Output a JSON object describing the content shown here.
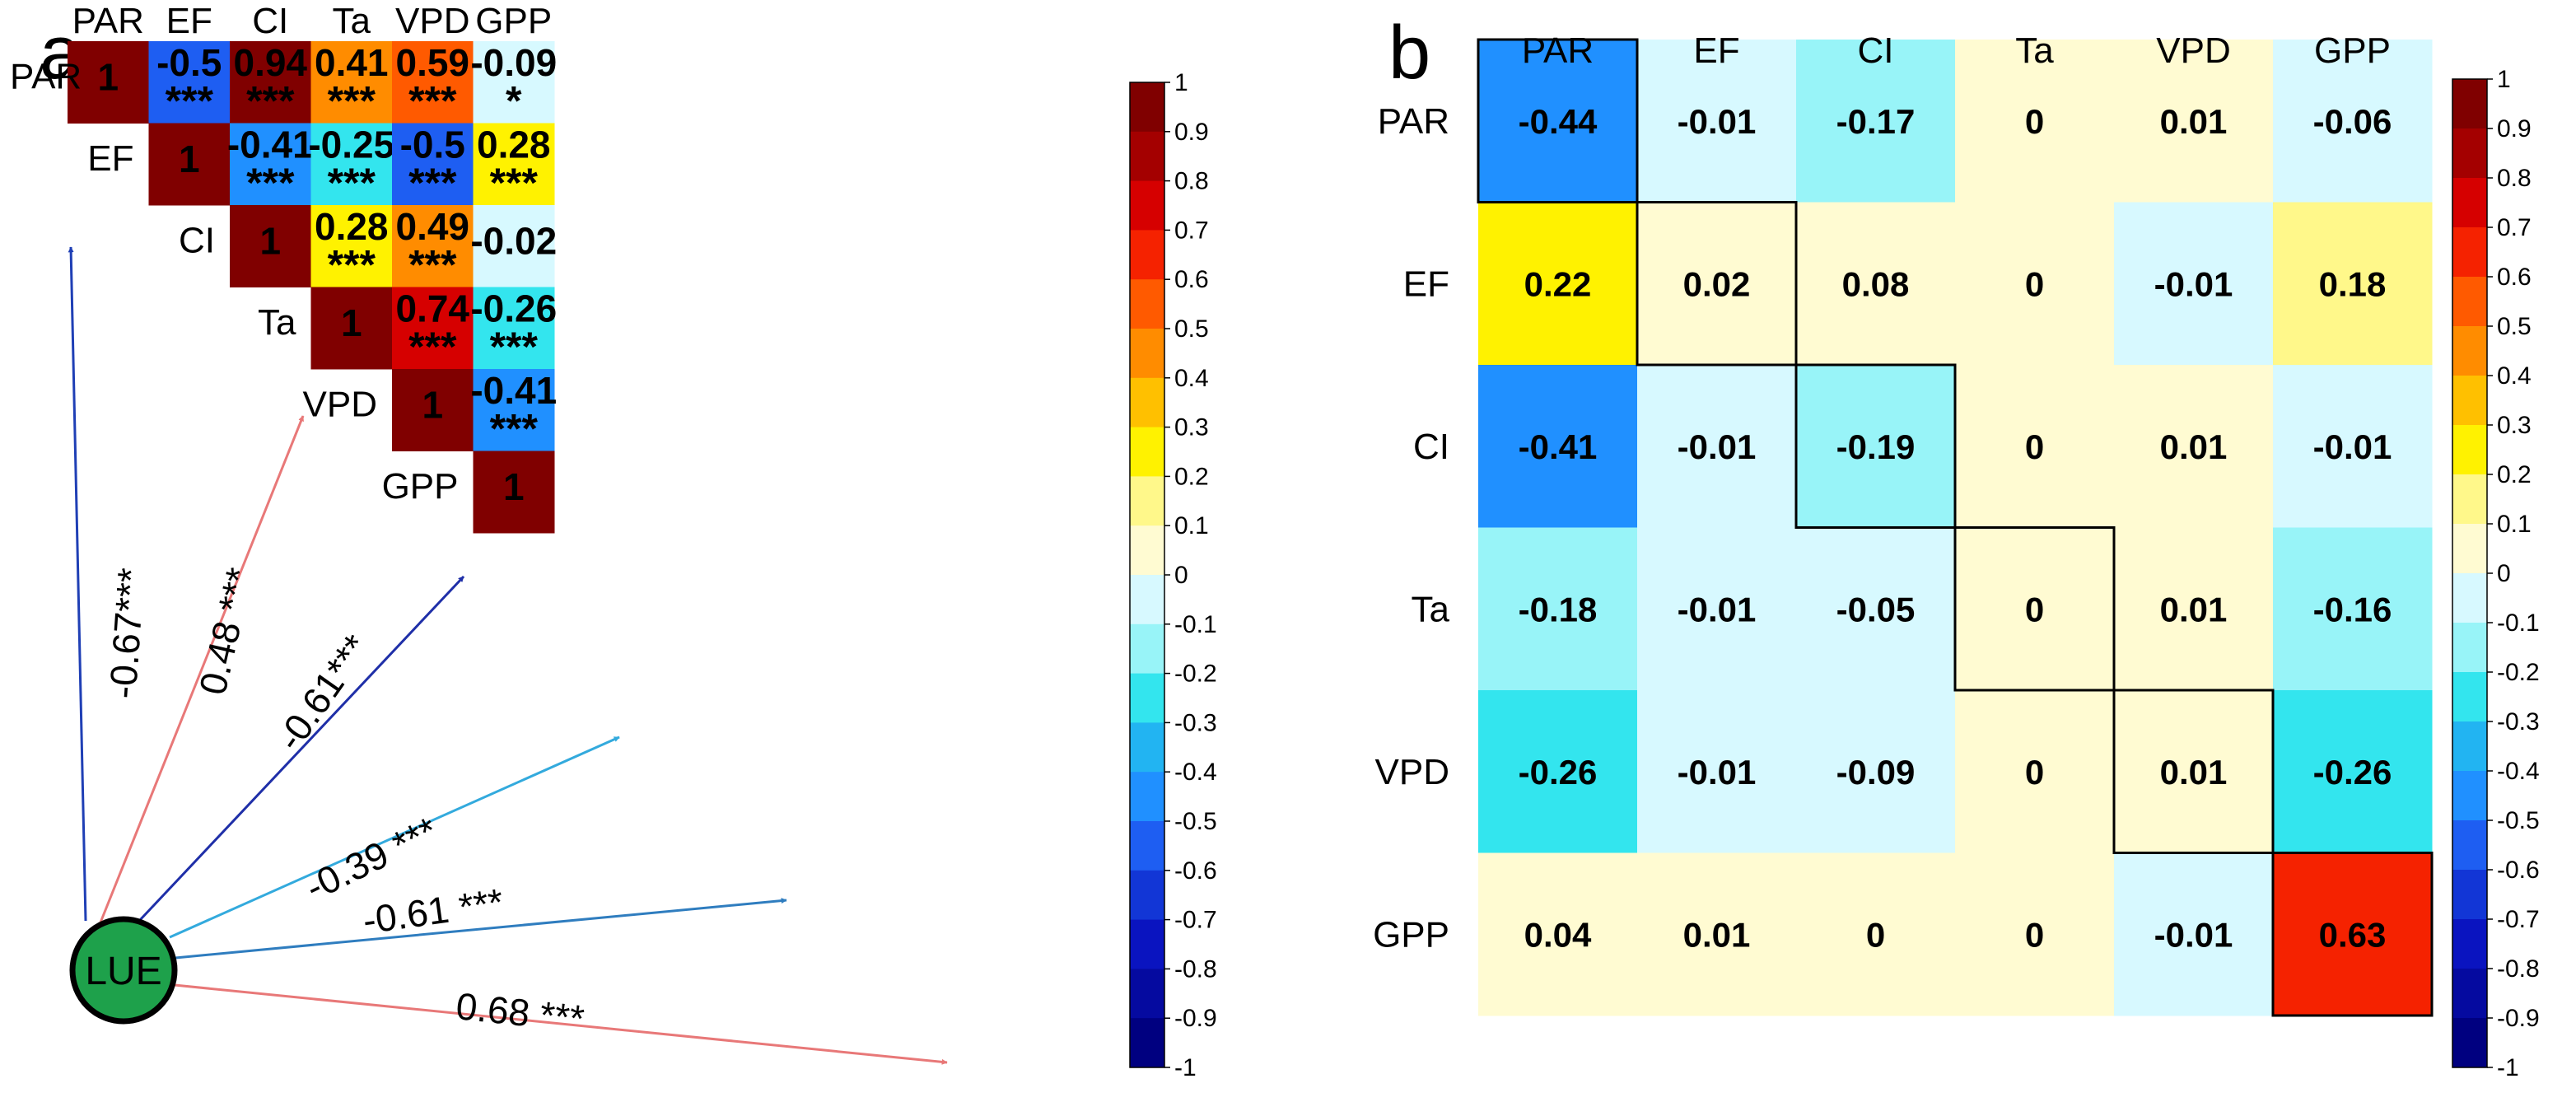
{
  "colorbar": {
    "ticks": [
      "1",
      "0.9",
      "0.8",
      "0.7",
      "0.6",
      "0.5",
      "0.4",
      "0.3",
      "0.2",
      "0.1",
      "0",
      "-0.1",
      "-0.2",
      "-0.3",
      "-0.4",
      "-0.5",
      "-0.6",
      "-0.7",
      "-0.8",
      "-0.9",
      "-1"
    ],
    "bins": [
      {
        "lo": 0.9,
        "hi": 1.0,
        "color": "#800000"
      },
      {
        "lo": 0.8,
        "hi": 0.9,
        "color": "#A40000"
      },
      {
        "lo": 0.7,
        "hi": 0.8,
        "color": "#D60000"
      },
      {
        "lo": 0.6,
        "hi": 0.7,
        "color": "#F52200"
      },
      {
        "lo": 0.5,
        "hi": 0.6,
        "color": "#FF5A00"
      },
      {
        "lo": 0.4,
        "hi": 0.5,
        "color": "#FF8C00"
      },
      {
        "lo": 0.3,
        "hi": 0.4,
        "color": "#FFC000"
      },
      {
        "lo": 0.2,
        "hi": 0.3,
        "color": "#FFF200"
      },
      {
        "lo": 0.1,
        "hi": 0.2,
        "color": "#FFF88A"
      },
      {
        "lo": 0.0,
        "hi": 0.1,
        "color": "#FFFBD2"
      },
      {
        "lo": -0.1,
        "hi": 0.0,
        "color": "#D7F9FF"
      },
      {
        "lo": -0.2,
        "hi": -0.1,
        "color": "#98F4F8"
      },
      {
        "lo": -0.3,
        "hi": -0.2,
        "color": "#33E5EE"
      },
      {
        "lo": -0.4,
        "hi": -0.3,
        "color": "#22B4F2"
      },
      {
        "lo": -0.5,
        "hi": -0.4,
        "color": "#2090FF"
      },
      {
        "lo": -0.6,
        "hi": -0.5,
        "color": "#1E5EF2"
      },
      {
        "lo": -0.7,
        "hi": -0.6,
        "color": "#1236D6"
      },
      {
        "lo": -0.8,
        "hi": -0.7,
        "color": "#0A14C0"
      },
      {
        "lo": -0.9,
        "hi": -0.8,
        "color": "#050AA0"
      },
      {
        "lo": -1.0,
        "hi": -0.9,
        "color": "#000080"
      }
    ]
  },
  "chart_data": [
    {
      "type": "heatmap",
      "panel": "a",
      "title": "",
      "variables": [
        "PAR",
        "EF",
        "CI",
        "Ta",
        "VPD",
        "GPP"
      ],
      "cells": [
        {
          "row": 0,
          "col": 0,
          "value": 1,
          "label": "1",
          "stars": ""
        },
        {
          "row": 0,
          "col": 1,
          "value": -0.5,
          "label": "-0.5",
          "stars": "***"
        },
        {
          "row": 0,
          "col": 2,
          "value": 0.94,
          "label": "0.94",
          "stars": "***"
        },
        {
          "row": 0,
          "col": 3,
          "value": 0.41,
          "label": "0.41",
          "stars": "***"
        },
        {
          "row": 0,
          "col": 4,
          "value": 0.59,
          "label": "0.59",
          "stars": "***"
        },
        {
          "row": 0,
          "col": 5,
          "value": -0.09,
          "label": "-0.09",
          "stars": "*"
        },
        {
          "row": 1,
          "col": 1,
          "value": 1,
          "label": "1",
          "stars": ""
        },
        {
          "row": 1,
          "col": 2,
          "value": -0.41,
          "label": "-0.41",
          "stars": "***"
        },
        {
          "row": 1,
          "col": 3,
          "value": -0.25,
          "label": "-0.25",
          "stars": "***"
        },
        {
          "row": 1,
          "col": 4,
          "value": -0.5,
          "label": "-0.5",
          "stars": "***"
        },
        {
          "row": 1,
          "col": 5,
          "value": 0.28,
          "label": "0.28",
          "stars": "***"
        },
        {
          "row": 2,
          "col": 2,
          "value": 1,
          "label": "1",
          "stars": ""
        },
        {
          "row": 2,
          "col": 3,
          "value": 0.28,
          "label": "0.28",
          "stars": "***"
        },
        {
          "row": 2,
          "col": 4,
          "value": 0.49,
          "label": "0.49",
          "stars": "***"
        },
        {
          "row": 2,
          "col": 5,
          "value": -0.02,
          "label": "-0.02",
          "stars": ""
        },
        {
          "row": 3,
          "col": 3,
          "value": 1,
          "label": "1",
          "stars": ""
        },
        {
          "row": 3,
          "col": 4,
          "value": 0.74,
          "label": "0.74",
          "stars": "***"
        },
        {
          "row": 3,
          "col": 5,
          "value": -0.26,
          "label": "-0.26",
          "stars": "***"
        },
        {
          "row": 4,
          "col": 4,
          "value": 1,
          "label": "1",
          "stars": ""
        },
        {
          "row": 4,
          "col": 5,
          "value": -0.41,
          "label": "-0.41",
          "stars": "***"
        },
        {
          "row": 5,
          "col": 5,
          "value": 1,
          "label": "1",
          "stars": ""
        }
      ],
      "lue_node": {
        "label": "LUE",
        "color": "#1EA14B",
        "paths": [
          {
            "target": "PAR",
            "coefficient": -0.67,
            "label": "-0.67***",
            "color": "#1F3FB5"
          },
          {
            "target": "EF",
            "coefficient": 0.48,
            "label": "0.48 ***",
            "color": "#E87878"
          },
          {
            "target": "CI",
            "coefficient": -0.61,
            "label": "-0.61***",
            "color": "#1F2FA8"
          },
          {
            "target": "Ta",
            "coefficient": -0.39,
            "label": "-0.39 ***",
            "color": "#33AADD"
          },
          {
            "target": "VPD",
            "coefficient": -0.61,
            "label": "-0.61 ***",
            "color": "#2F7DBF"
          },
          {
            "target": "GPP",
            "coefficient": 0.68,
            "label": "0.68 ***",
            "color": "#E87878"
          }
        ]
      },
      "colorbar_range": [
        -1,
        1
      ]
    },
    {
      "type": "heatmap",
      "panel": "b",
      "title": "",
      "columns": [
        "PAR",
        "EF",
        "CI",
        "Ta",
        "VPD",
        "GPP"
      ],
      "rows": [
        "PAR",
        "EF",
        "CI",
        "Ta",
        "VPD",
        "GPP"
      ],
      "values": [
        [
          -0.44,
          -0.01,
          -0.17,
          0,
          0.01,
          -0.06
        ],
        [
          0.22,
          0.02,
          0.08,
          0,
          -0.01,
          0.18
        ],
        [
          -0.41,
          -0.01,
          -0.19,
          0,
          0.01,
          -0.01
        ],
        [
          -0.18,
          -0.01,
          -0.05,
          0,
          0.01,
          -0.16
        ],
        [
          -0.26,
          -0.01,
          -0.09,
          0,
          0.01,
          -0.26
        ],
        [
          0.04,
          0.01,
          0,
          0,
          -0.01,
          0.63
        ]
      ],
      "diagonal_outlined": true,
      "colorbar_range": [
        -1,
        1
      ]
    }
  ],
  "panels": {
    "a": {
      "letter": "a"
    },
    "b": {
      "letter": "b"
    }
  }
}
